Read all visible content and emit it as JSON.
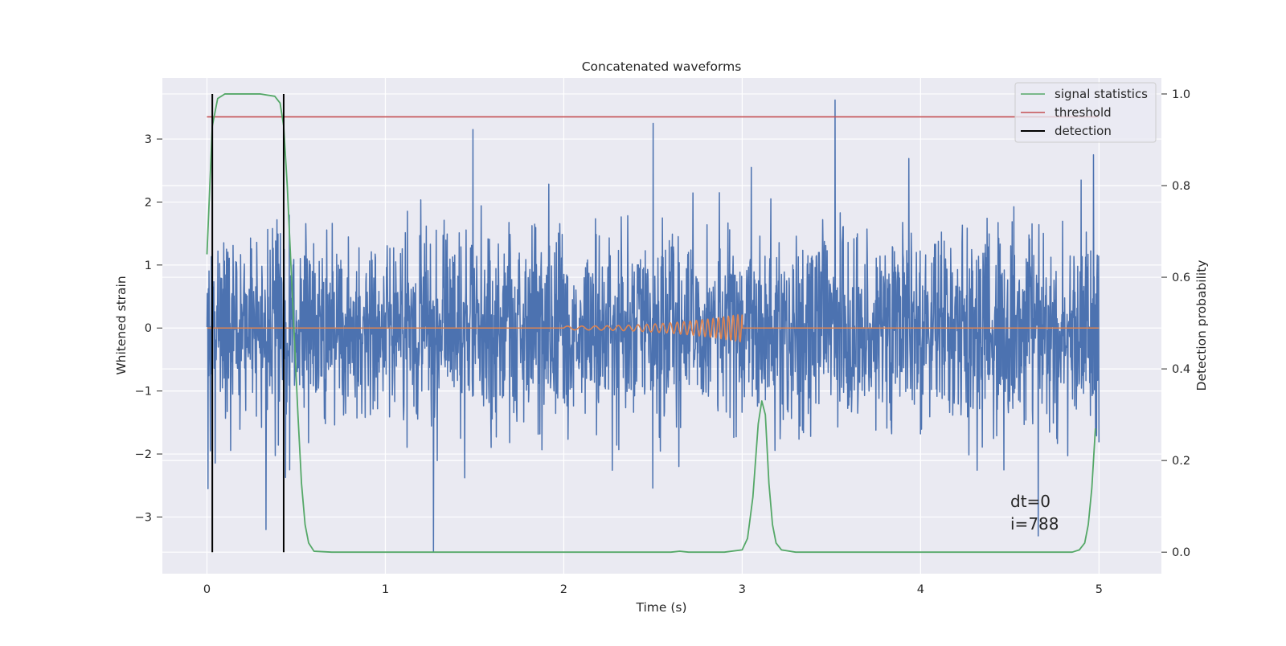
{
  "chart_data": {
    "type": "line",
    "title": "Concatenated waveforms",
    "xlabel": "Time (s)",
    "ylabel": "Whitened strain",
    "y2label": "Detection probability",
    "xlim": [
      -0.25,
      5.35
    ],
    "ylim": [
      -3.9,
      3.97
    ],
    "y2lim": [
      -0.047,
      1.035
    ],
    "xticks": [
      0,
      1,
      2,
      3,
      4,
      5
    ],
    "yticks": [
      -3,
      -2,
      -1,
      0,
      1,
      2,
      3
    ],
    "y2ticks": [
      0.0,
      0.2,
      0.4,
      0.6,
      0.8,
      1.0
    ],
    "grid": true,
    "legend_position": "top-right",
    "legend": [
      "signal statistics",
      "threshold",
      "detection"
    ],
    "annotation": [
      "dt=0",
      "i=788"
    ],
    "colors": {
      "strain": "#4c72b0",
      "injection": "#dd8452",
      "signal_statistics": "#55a868",
      "threshold": "#c44e52",
      "detection": "#000000",
      "background": "#eaeaf2",
      "grid": "#ffffff"
    },
    "series": [
      {
        "name": "whitened strain (noise)",
        "axis": "left",
        "x_range": [
          0,
          5
        ],
        "amplitude_sigma": 0.75,
        "extremes": [
          {
            "x": 0.33,
            "y": -3.2
          },
          {
            "x": 1.27,
            "y": -3.55
          },
          {
            "x": 1.49,
            "y": 3.15
          },
          {
            "x": 2.5,
            "y": 3.25
          },
          {
            "x": 3.52,
            "y": 3.62
          },
          {
            "x": 4.66,
            "y": -3.3
          },
          {
            "x": 4.97,
            "y": 2.75
          },
          {
            "x": 0.02,
            "y": -1.95
          },
          {
            "x": 4.98,
            "y": -1.65
          }
        ]
      },
      {
        "name": "injected chirp",
        "axis": "left",
        "x_range": [
          2.0,
          3.0
        ],
        "start_amplitude": 0.03,
        "end_amplitude": 0.22,
        "start_frequency": 12,
        "end_frequency": 40
      },
      {
        "name": "signal statistics",
        "axis": "right",
        "x": [
          0.0,
          0.03,
          0.06,
          0.1,
          0.15,
          0.2,
          0.3,
          0.38,
          0.41,
          0.43,
          0.45,
          0.48,
          0.51,
          0.53,
          0.55,
          0.57,
          0.6,
          0.7,
          1.0,
          2.0,
          2.6,
          2.65,
          2.7,
          2.9,
          3.0,
          3.03,
          3.06,
          3.09,
          3.11,
          3.13,
          3.15,
          3.17,
          3.19,
          3.22,
          3.3,
          4.0,
          4.85,
          4.89,
          4.92,
          4.94,
          4.96,
          4.98
        ],
        "y": [
          0.65,
          0.93,
          0.99,
          1.0,
          1.0,
          1.0,
          1.0,
          0.995,
          0.98,
          0.93,
          0.8,
          0.55,
          0.3,
          0.15,
          0.06,
          0.02,
          0.002,
          0.0,
          0.0,
          0.0,
          0.0,
          0.002,
          0.0,
          0.0,
          0.005,
          0.03,
          0.12,
          0.28,
          0.33,
          0.3,
          0.15,
          0.06,
          0.02,
          0.005,
          0.0,
          0.0,
          0.0,
          0.005,
          0.02,
          0.06,
          0.14,
          0.27
        ]
      },
      {
        "name": "threshold",
        "axis": "right",
        "x": [
          0,
          5
        ],
        "y": [
          0.95,
          0.95
        ]
      },
      {
        "name": "detection",
        "axis": "right",
        "x": [
          0.03,
          0.43
        ],
        "ymin": 0.0,
        "ymax": 1.0
      }
    ]
  }
}
